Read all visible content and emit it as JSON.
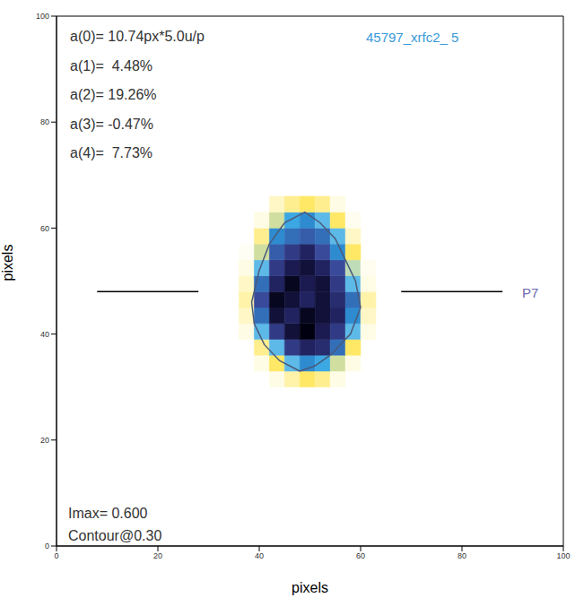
{
  "chart_data": {
    "type": "heatmap",
    "x_label": "pixels",
    "y_label": "pixels",
    "xlim": [
      0,
      100
    ],
    "ylim": [
      0,
      100
    ],
    "xticks": [
      0,
      20,
      40,
      60,
      80,
      100
    ],
    "yticks": [
      0,
      20,
      40,
      60,
      80,
      100
    ],
    "zlim": [
      0,
      0.6
    ],
    "x_edges": [
      36,
      39,
      42,
      45,
      48,
      51,
      54,
      57,
      60,
      63
    ],
    "y_edges": [
      30,
      33,
      36,
      39,
      42,
      45,
      48,
      51,
      54,
      57,
      60,
      63,
      66
    ],
    "z": [
      [
        0,
        0,
        0.05,
        0.1,
        0.15,
        0.12,
        0.05,
        0,
        0
      ],
      [
        0,
        0.05,
        0.15,
        0.3,
        0.35,
        0.32,
        0.2,
        0.05,
        0
      ],
      [
        0,
        0.12,
        0.3,
        0.45,
        0.5,
        0.48,
        0.38,
        0.15,
        0
      ],
      [
        0.05,
        0.3,
        0.45,
        0.55,
        0.6,
        0.52,
        0.45,
        0.3,
        0.05
      ],
      [
        0.08,
        0.38,
        0.55,
        0.5,
        0.58,
        0.55,
        0.5,
        0.35,
        0.08
      ],
      [
        0.1,
        0.42,
        0.58,
        0.55,
        0.5,
        0.55,
        0.48,
        0.38,
        0.1
      ],
      [
        0.08,
        0.38,
        0.5,
        0.58,
        0.52,
        0.55,
        0.45,
        0.3,
        0.05
      ],
      [
        0.05,
        0.3,
        0.45,
        0.52,
        0.55,
        0.5,
        0.42,
        0.22,
        0.03
      ],
      [
        0.02,
        0.2,
        0.4,
        0.45,
        0.5,
        0.42,
        0.35,
        0.15,
        0
      ],
      [
        0,
        0.12,
        0.35,
        0.38,
        0.4,
        0.38,
        0.3,
        0.08,
        0
      ],
      [
        0,
        0.05,
        0.2,
        0.32,
        0.35,
        0.3,
        0.15,
        0.03,
        0
      ],
      [
        0,
        0,
        0.08,
        0.12,
        0.15,
        0.12,
        0.05,
        0,
        0
      ]
    ],
    "contour": {
      "x": [
        48,
        44,
        41,
        39,
        38.5,
        40,
        42,
        45,
        49,
        52,
        55,
        57,
        59,
        60,
        58,
        54,
        51,
        48
      ],
      "y": [
        33,
        35,
        38,
        42,
        46,
        52,
        57,
        61,
        63,
        61,
        58,
        54,
        50,
        45,
        40,
        36,
        34,
        33
      ],
      "color": "#4a5a7a"
    },
    "lines": [
      {
        "x": [
          8,
          28
        ],
        "y": [
          48,
          48
        ],
        "color": "#000000"
      },
      {
        "x": [
          68,
          88
        ],
        "y": [
          48,
          48
        ],
        "color": "#000000"
      }
    ],
    "annotations": {
      "coefficients": [
        "a(0)= 10.74px*5.0u/p",
        "a(1)=  4.48%",
        "a(2)= 19.26%",
        "a(3)= -0.47%",
        "a(4)=  7.73%"
      ],
      "shot": "45797_xrfc2_ 5",
      "probe": "P7",
      "imax": "Imax= 0.600",
      "contour_label": "Contour@0.30"
    }
  }
}
